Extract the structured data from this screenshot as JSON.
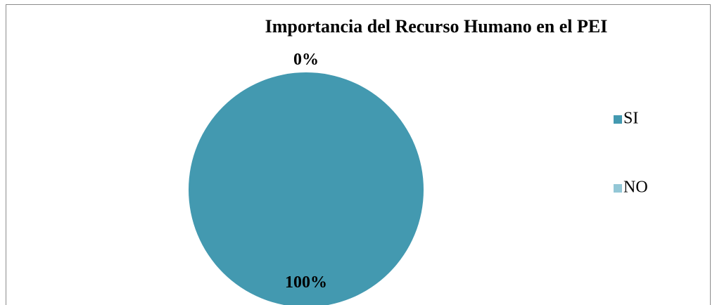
{
  "chart_data": {
    "type": "pie",
    "title": "Importancia del Recurso Humano en el PEI",
    "categories": [
      "SI",
      "NO"
    ],
    "values": [
      100,
      0
    ],
    "value_labels": [
      "100%",
      "0%"
    ],
    "colors": [
      "#4399b0",
      "#93c7d6"
    ],
    "legend": "right"
  }
}
